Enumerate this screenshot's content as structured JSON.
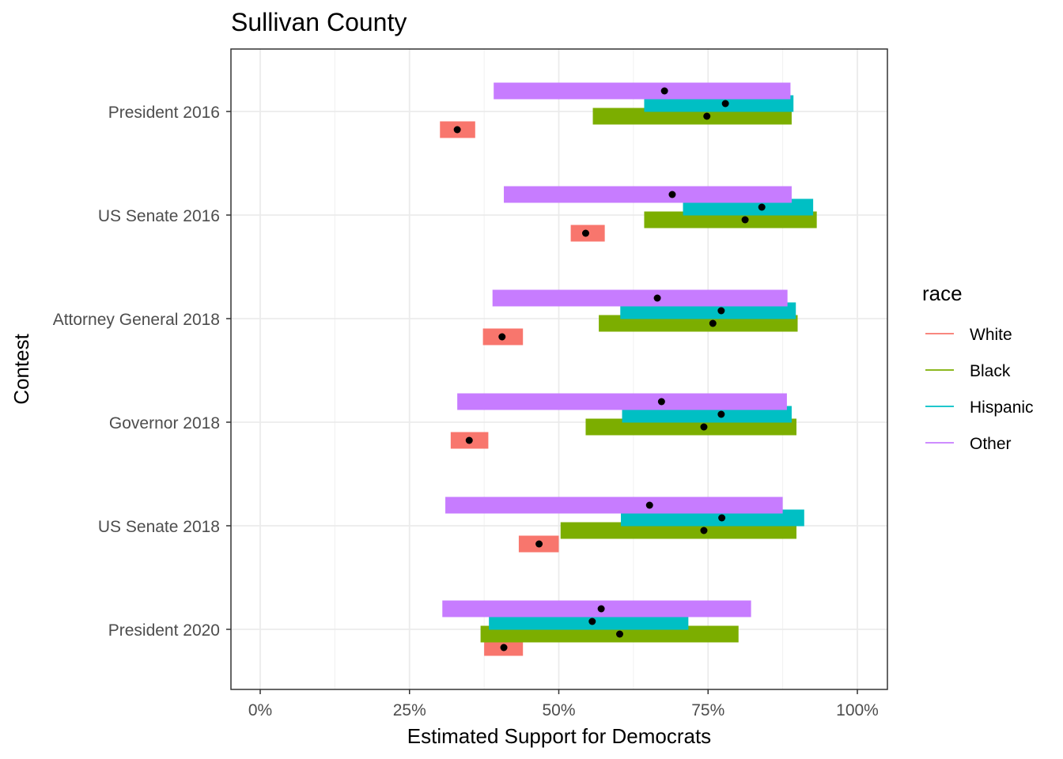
{
  "chart_data": {
    "type": "interval",
    "title": "Sullivan County",
    "xlabel": "Estimated Support for Democrats",
    "ylabel": "Contest",
    "xlim": [
      -0.005,
      1.045
    ],
    "x_ticks": [
      0,
      0.25,
      0.5,
      0.75,
      1.0
    ],
    "x_tick_labels": [
      "0%",
      "25%",
      "50%",
      "75%",
      "100%"
    ],
    "x_minor_ticks": [
      0.125,
      0.375,
      0.625,
      0.875
    ],
    "grid": true,
    "legend_title": "race",
    "legend_position": "right",
    "categories": [
      "President 2016",
      "US Senate 2016",
      "Attorney General 2018",
      "Governor 2018",
      "US Senate 2018",
      "President 2020"
    ],
    "series": [
      {
        "name": "White",
        "color": "#F8766D",
        "values": [
          {
            "low": 0.301,
            "high": 0.36,
            "point": 0.33
          },
          {
            "low": 0.52,
            "high": 0.577,
            "point": 0.545
          },
          {
            "low": 0.373,
            "high": 0.44,
            "point": 0.405
          },
          {
            "low": 0.319,
            "high": 0.382,
            "point": 0.35
          },
          {
            "low": 0.433,
            "high": 0.5,
            "point": 0.467
          },
          {
            "low": 0.375,
            "high": 0.44,
            "point": 0.408
          }
        ]
      },
      {
        "name": "Black",
        "color": "#7CAE00",
        "values": [
          {
            "low": 0.557,
            "high": 0.89,
            "point": 0.748
          },
          {
            "low": 0.643,
            "high": 0.932,
            "point": 0.812
          },
          {
            "low": 0.567,
            "high": 0.9,
            "point": 0.758
          },
          {
            "low": 0.545,
            "high": 0.898,
            "point": 0.743
          },
          {
            "low": 0.503,
            "high": 0.898,
            "point": 0.743
          },
          {
            "low": 0.369,
            "high": 0.801,
            "point": 0.602
          }
        ]
      },
      {
        "name": "Hispanic",
        "color": "#00BFC4",
        "values": [
          {
            "low": 0.643,
            "high": 0.893,
            "point": 0.779
          },
          {
            "low": 0.708,
            "high": 0.926,
            "point": 0.84
          },
          {
            "low": 0.603,
            "high": 0.897,
            "point": 0.772
          },
          {
            "low": 0.606,
            "high": 0.89,
            "point": 0.772
          },
          {
            "low": 0.604,
            "high": 0.911,
            "point": 0.773
          },
          {
            "low": 0.383,
            "high": 0.717,
            "point": 0.556
          }
        ]
      },
      {
        "name": "Other",
        "color": "#C77CFF",
        "values": [
          {
            "low": 0.391,
            "high": 0.888,
            "point": 0.677
          },
          {
            "low": 0.408,
            "high": 0.89,
            "point": 0.69
          },
          {
            "low": 0.389,
            "high": 0.883,
            "point": 0.665
          },
          {
            "low": 0.33,
            "high": 0.882,
            "point": 0.672
          },
          {
            "low": 0.31,
            "high": 0.875,
            "point": 0.652
          },
          {
            "low": 0.305,
            "high": 0.822,
            "point": 0.571
          }
        ]
      }
    ]
  }
}
